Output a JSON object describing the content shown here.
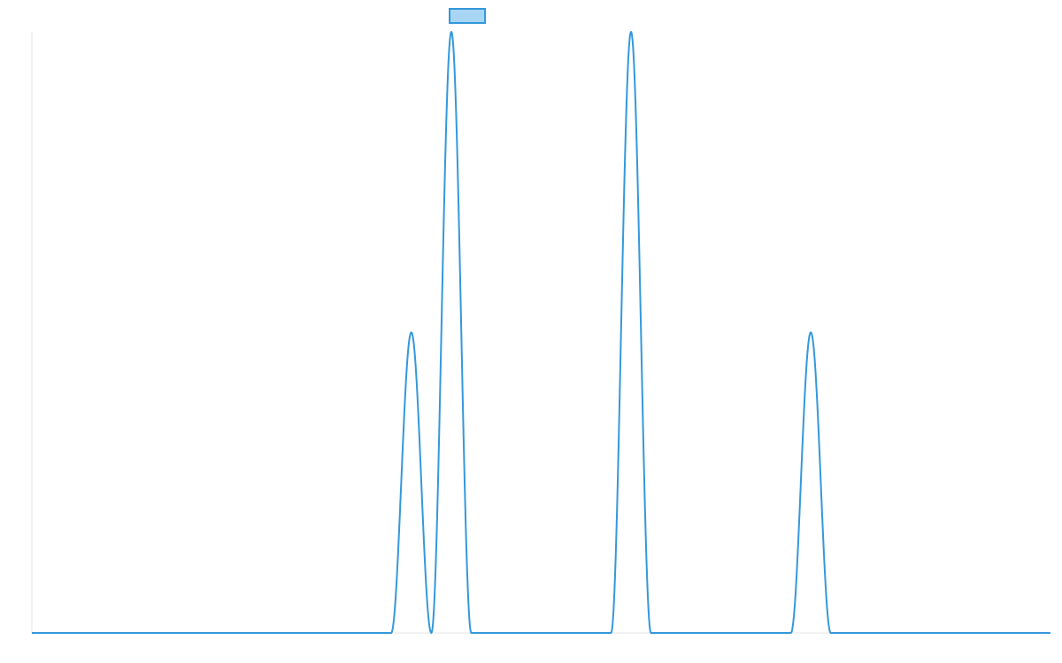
{
  "chart_data": {
    "type": "line",
    "title": "",
    "xlabel": "",
    "ylabel": "",
    "xlim": [
      0,
      1
    ],
    "ylim": [
      0,
      1
    ],
    "grid": false,
    "legend": {
      "placement": "top-center",
      "shape": "swatch-only"
    },
    "series": [
      {
        "color": "#3498db",
        "fill": "#a9d5f5",
        "x": [
          0,
          0.3527,
          0.3725,
          0.3922,
          0.4118,
          0.4314,
          0.4514,
          0.5686,
          0.5882,
          0.6078,
          0.7451,
          0.7647,
          0.7843,
          1
        ],
        "y": [
          0,
          0,
          0.5,
          0,
          1,
          0,
          0,
          0,
          1,
          0,
          0,
          0.5,
          0,
          0
        ]
      }
    ]
  },
  "colors": {
    "line": "#3498db",
    "legend_fill": "#a9d5f5",
    "axis": "#e6e6e6"
  }
}
